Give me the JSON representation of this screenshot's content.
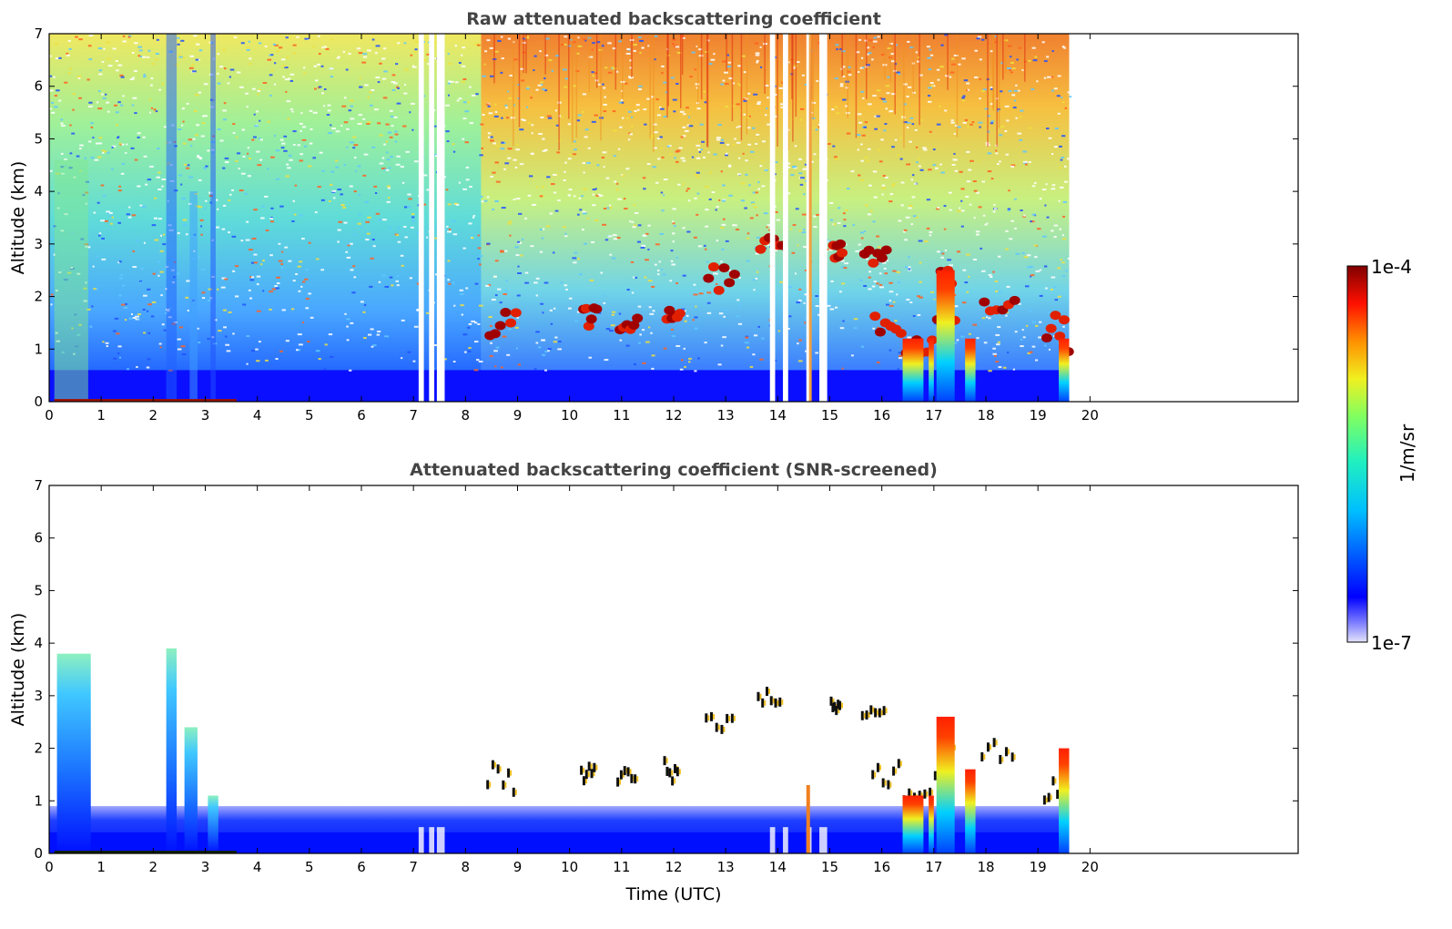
{
  "chart_data": [
    {
      "type": "heatmap",
      "title": "Raw attenuated backscattering coefficient",
      "xlabel": "",
      "ylabel": "Altitude (km)",
      "xlim": [
        0,
        24
      ],
      "ylim": [
        0,
        7
      ],
      "x_ticks": [
        "0",
        "1",
        "2",
        "3",
        "4",
        "5",
        "6",
        "7",
        "8",
        "9",
        "10",
        "11",
        "12",
        "13",
        "14",
        "15",
        "16",
        "17",
        "18",
        "19",
        "20"
      ],
      "y_ticks": [
        "0",
        "1",
        "2",
        "3",
        "4",
        "5",
        "6",
        "7"
      ],
      "data_end_hour": 19.6,
      "no_data_gaps_hours": [
        [
          7.1,
          7.2
        ],
        [
          7.3,
          7.4
        ],
        [
          7.45,
          7.6
        ],
        [
          13.85,
          13.95
        ],
        [
          14.1,
          14.2
        ],
        [
          14.55,
          14.65
        ],
        [
          14.8,
          14.95
        ]
      ],
      "cloud_layers": [
        {
          "x": [
            8.4,
            9.0
          ],
          "altitude_km": [
            1.1,
            1.7
          ]
        },
        {
          "x": [
            10.2,
            10.5
          ],
          "altitude_km": [
            1.3,
            1.8
          ]
        },
        {
          "x": [
            10.9,
            11.3
          ],
          "altitude_km": [
            1.3,
            1.6
          ]
        },
        {
          "x": [
            11.8,
            12.1
          ],
          "altitude_km": [
            1.3,
            1.8
          ]
        },
        {
          "x": [
            12.6,
            13.2
          ],
          "altitude_km": [
            2.1,
            2.7
          ]
        },
        {
          "x": [
            13.6,
            14.1
          ],
          "altitude_km": [
            2.8,
            3.3
          ]
        },
        {
          "x": [
            15.0,
            15.2
          ],
          "altitude_km": [
            2.7,
            3.0
          ]
        },
        {
          "x": [
            15.6,
            16.1
          ],
          "altitude_km": [
            2.6,
            2.9
          ]
        },
        {
          "x": [
            15.8,
            16.4
          ],
          "altitude_km": [
            1.2,
            1.7
          ]
        },
        {
          "x": [
            16.4,
            17.0
          ],
          "altitude_km": [
            0.9,
            1.2
          ]
        },
        {
          "x": [
            17.0,
            17.4
          ],
          "altitude_km": [
            1.4,
            2.6
          ]
        },
        {
          "x": [
            17.9,
            18.6
          ],
          "altitude_km": [
            1.7,
            2.1
          ]
        },
        {
          "x": [
            19.1,
            19.6
          ],
          "altitude_km": [
            0.9,
            1.7
          ]
        }
      ]
    },
    {
      "type": "heatmap",
      "title": "Attenuated backscattering coefficient (SNR-screened)",
      "xlabel": "Time (UTC)",
      "ylabel": "Altitude (km)",
      "xlim": [
        0,
        24
      ],
      "ylim": [
        0,
        7
      ],
      "x_ticks": [
        "0",
        "1",
        "2",
        "3",
        "4",
        "5",
        "6",
        "7",
        "8",
        "9",
        "10",
        "11",
        "12",
        "13",
        "14",
        "15",
        "16",
        "17",
        "18",
        "19",
        "20"
      ],
      "y_ticks": [
        "0",
        "1",
        "2",
        "3",
        "4",
        "5",
        "6",
        "7"
      ],
      "data_end_hour": 19.6
    }
  ],
  "colorbar": {
    "min_label": "1e-7",
    "max_label": "1e-4",
    "unit_label": "1/m/sr",
    "scale": "log"
  }
}
